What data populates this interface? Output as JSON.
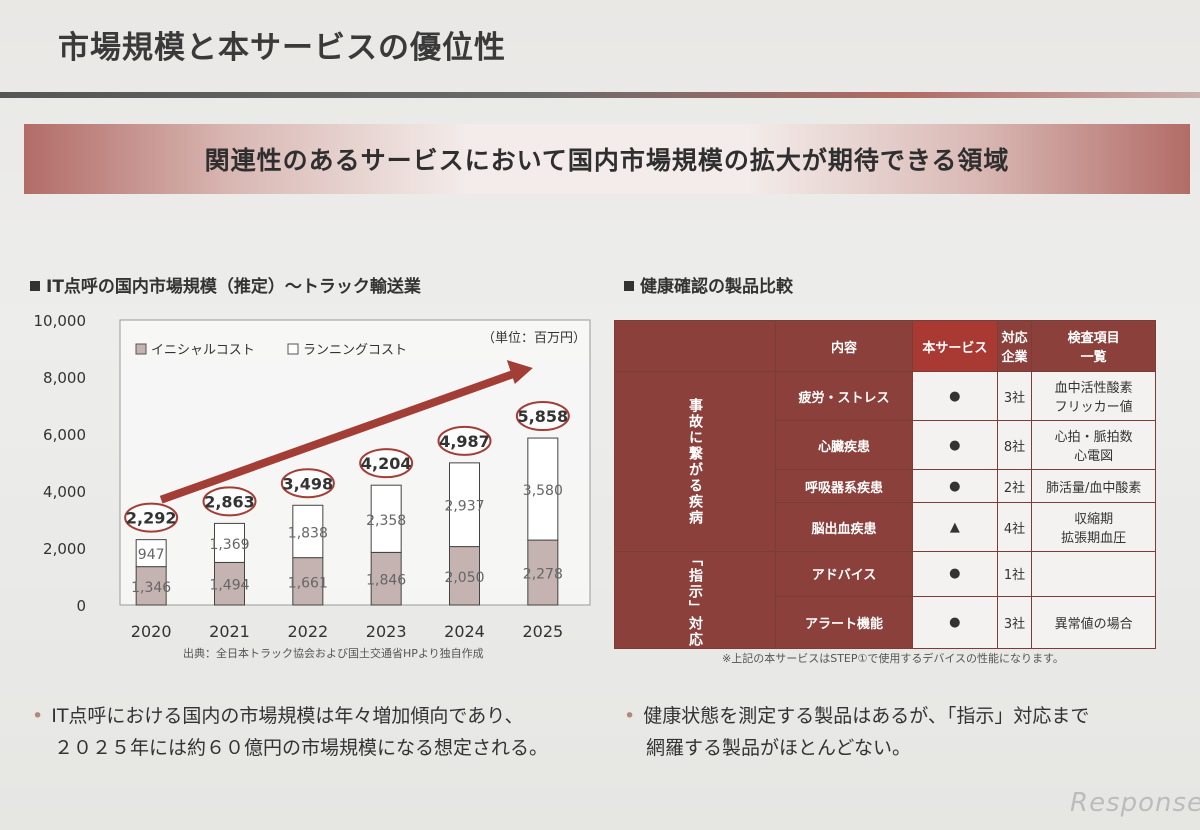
{
  "page_title": "市場規模と本サービスの優位性",
  "banner": "関連性のあるサービスにおいて国内市場規模の拡大が期待できる領域",
  "left_heading": "IT点呼の国内市場規模（推定）～トラック輸送業",
  "right_heading": "健康確認の製品比較",
  "chart_data": {
    "type": "bar",
    "stacked": true,
    "categories": [
      "2020",
      "2021",
      "2022",
      "2023",
      "2024",
      "2025"
    ],
    "series": [
      {
        "name": "イニシャルコスト",
        "values": [
          1346,
          1494,
          1661,
          1846,
          2050,
          2278
        ]
      },
      {
        "name": "ランニングコスト",
        "values": [
          947,
          1369,
          1838,
          2358,
          2937,
          3580
        ]
      }
    ],
    "totals": [
      2292,
      2863,
      3498,
      4204,
      4987,
      5858
    ],
    "total_labels": [
      "2,292",
      "2,863",
      "3,498",
      "4,204",
      "4,987",
      "5,858"
    ],
    "initial_labels": [
      "1,346",
      "1,494",
      "1,661",
      "1,846",
      "2,050",
      "2,278"
    ],
    "running_labels": [
      "947",
      "1,369",
      "1,838",
      "2,358",
      "2,937",
      "3,580"
    ],
    "y_ticks": [
      0,
      2000,
      4000,
      6000,
      8000,
      10000
    ],
    "y_tick_labels": [
      "0",
      "2,000",
      "4,000",
      "6,000",
      "8,000",
      "10,000"
    ],
    "ylim": [
      0,
      10000
    ],
    "unit": "（単位：百万円）",
    "legend_position": "top-left",
    "source": "出典：全日本トラック協会および国土交通省HPより独自作成",
    "colors": {
      "initial": "#c4b3b1",
      "running": "#ffffff",
      "arrow": "#a33e36",
      "ellipse": "#a33e36"
    }
  },
  "table": {
    "headers": [
      "内容",
      "本サービス",
      "対応\n企業",
      "検査項目\n一覧"
    ],
    "groups": [
      {
        "label": "事故に繋がる疾病",
        "rows": [
          {
            "item": "疲労・ストレス",
            "mark": "●",
            "companies": "3社",
            "inspection": "血中活性酸素\nフリッカー値"
          },
          {
            "item": "心臓疾患",
            "mark": "●",
            "companies": "8社",
            "inspection": "心拍・脈拍数\n心電図"
          },
          {
            "item": "呼吸器系疾患",
            "mark": "●",
            "companies": "2社",
            "inspection": "肺活量/血中酸素"
          },
          {
            "item": "脳出血疾患",
            "mark": "▲",
            "companies": "4社",
            "inspection": "収縮期\n拡張期血圧"
          }
        ]
      },
      {
        "label": "「指示」対応",
        "rows": [
          {
            "item": "アドバイス",
            "mark": "●",
            "companies": "1社",
            "inspection": ""
          },
          {
            "item": "アラート機能",
            "mark": "●",
            "companies": "3社",
            "inspection": "異常値の場合"
          }
        ]
      }
    ],
    "note": "※上記の本サービスはSTEP①で使用するデバイスの性能になります。"
  },
  "bullets": {
    "left": [
      "IT点呼における国内の市場規模は年々増加傾向であり、",
      "２０２５年には約６０億円の市場規模になる想定される。"
    ],
    "right": [
      "健康状態を測定する製品はあるが、「指示」対応まで",
      "網羅する製品がほとんどない。"
    ]
  },
  "logo": "Response."
}
